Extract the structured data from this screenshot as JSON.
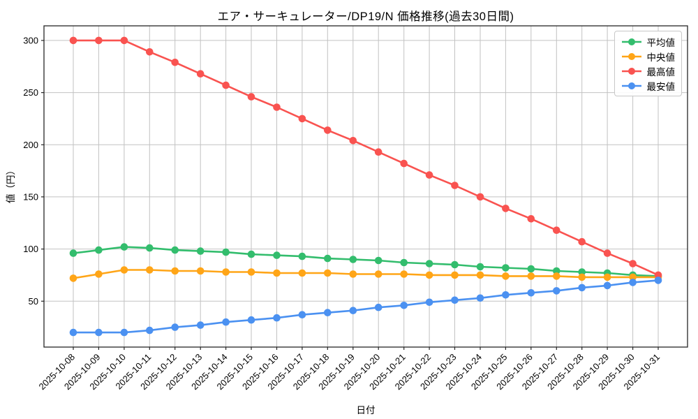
{
  "figure": {
    "title": "エア・サーキュレーター/DP19/N 価格推移(過去30日間)",
    "xlabel": "日付",
    "ylabel": "値（円）"
  },
  "legend": {
    "items": [
      {
        "label": "平均値"
      },
      {
        "label": "中央値"
      },
      {
        "label": "最高値"
      },
      {
        "label": "最安値"
      }
    ]
  },
  "chart_data": {
    "type": "line",
    "title": "エア・サーキュレーター/DP19/N 価格推移(過去30日間)",
    "xlabel": "日付",
    "ylabel": "値（円）",
    "grid": true,
    "legend_position": "upper right",
    "marker": "circle",
    "ylim": [
      6,
      314
    ],
    "yticks": [
      50,
      100,
      150,
      200,
      250,
      300
    ],
    "x": [
      "2025-10-08",
      "2025-10-09",
      "2025-10-10",
      "2025-10-11",
      "2025-10-12",
      "2025-10-13",
      "2025-10-14",
      "2025-10-15",
      "2025-10-16",
      "2025-10-17",
      "2025-10-18",
      "2025-10-19",
      "2025-10-20",
      "2025-10-21",
      "2025-10-22",
      "2025-10-23",
      "2025-10-24",
      "2025-10-25",
      "2025-10-26",
      "2025-10-27",
      "2025-10-28",
      "2025-10-29",
      "2025-10-30",
      "2025-10-31"
    ],
    "series": [
      {
        "name": "平均値",
        "color": "#33bd6d",
        "values": [
          96,
          99,
          102,
          101,
          99,
          98,
          97,
          95,
          94,
          93,
          91,
          90,
          89,
          87,
          86,
          85,
          83,
          82,
          81,
          79,
          78,
          77,
          75,
          74
        ]
      },
      {
        "name": "中央値",
        "color": "#ffa517",
        "values": [
          72,
          76,
          80,
          80,
          79,
          79,
          78,
          78,
          77,
          77,
          77,
          76,
          76,
          76,
          75,
          75,
          75,
          74,
          74,
          74,
          73,
          73,
          73,
          73
        ]
      },
      {
        "name": "最高値",
        "color": "#f95350",
        "values": [
          300,
          300,
          300,
          289,
          279,
          268,
          257,
          246,
          236,
          225,
          214,
          204,
          193,
          182,
          171,
          161,
          150,
          139,
          129,
          118,
          107,
          96,
          86,
          75
        ]
      },
      {
        "name": "最安値",
        "color": "#4b91f1",
        "values": [
          20,
          20,
          20,
          22,
          25,
          27,
          30,
          32,
          34,
          37,
          39,
          41,
          44,
          46,
          49,
          51,
          53,
          56,
          58,
          60,
          63,
          65,
          68,
          70
        ]
      }
    ]
  }
}
